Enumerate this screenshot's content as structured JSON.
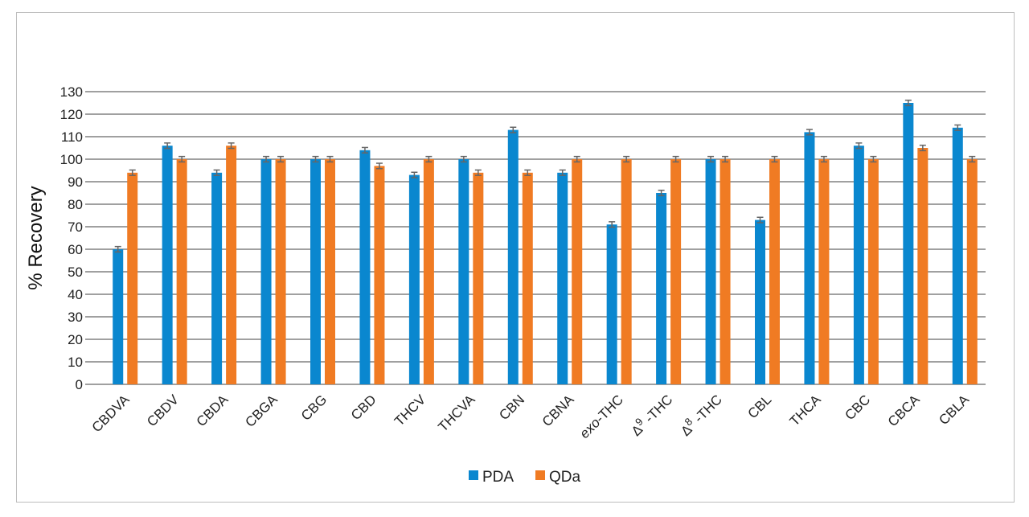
{
  "chart_data": {
    "type": "bar",
    "title": "",
    "xlabel": "",
    "ylabel": "% Recovery",
    "ylim": [
      0,
      130
    ],
    "yticks": [
      0,
      10,
      20,
      30,
      40,
      50,
      60,
      70,
      80,
      90,
      100,
      110,
      120,
      130
    ],
    "grid": true,
    "legend_position": "bottom-center",
    "categories": [
      "CBDVA",
      "CBDV",
      "CBDA",
      "CBGA",
      "CBG",
      "CBD",
      "THCV",
      "THCVA",
      "CBN",
      "CBNA",
      "exo-THC",
      "Δ9-THC",
      "Δ8-THC",
      "CBL",
      "THCA",
      "CBC",
      "CBCA",
      "CBLA"
    ],
    "series": [
      {
        "name": "PDA",
        "color": "#0a87cf",
        "values": [
          60,
          106,
          94,
          100,
          100,
          104,
          93,
          100,
          113,
          94,
          71,
          85,
          100,
          73,
          112,
          106,
          125,
          114
        ]
      },
      {
        "name": "QDa",
        "color": "#f07b23",
        "values": [
          94,
          100,
          106,
          100,
          100,
          97,
          100,
          94,
          94,
          100,
          100,
          100,
          100,
          100,
          100,
          100,
          105,
          100
        ]
      }
    ],
    "error_bar": 1.2
  }
}
